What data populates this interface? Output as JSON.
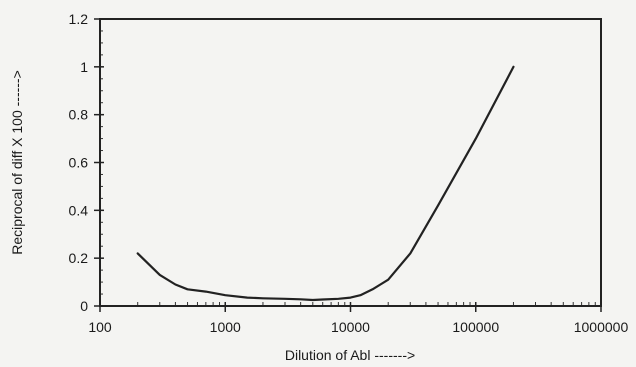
{
  "chart_data": {
    "type": "line",
    "xlabel": "Dilution of Abl ------->",
    "ylabel": "Reciprocal of diff X 100 ------>",
    "xscale": "log",
    "xlim": [
      100,
      1000000
    ],
    "ylim": [
      0,
      1.2
    ],
    "x_ticks": [
      100,
      1000,
      10000,
      100000,
      1000000
    ],
    "x_tick_labels": [
      "100",
      "1000",
      "10000",
      "100000",
      "1000000"
    ],
    "y_ticks": [
      0,
      0.2,
      0.4,
      0.6,
      0.8,
      1,
      1.2
    ],
    "y_tick_labels": [
      "0",
      "0.2",
      "0.4",
      "0.6",
      "0.8",
      "1",
      "1.2"
    ],
    "grid": false,
    "series": [
      {
        "x": [
          200,
          300,
          400,
          500,
          700,
          1000,
          1500,
          2000,
          3000,
          4000,
          5000,
          6000,
          8000,
          10000,
          12000,
          15000,
          20000,
          30000,
          50000,
          100000,
          200000
        ],
        "y": [
          0.22,
          0.13,
          0.09,
          0.07,
          0.06,
          0.045,
          0.035,
          0.032,
          0.03,
          0.028,
          0.025,
          0.027,
          0.03,
          0.035,
          0.045,
          0.07,
          0.11,
          0.22,
          0.42,
          0.7,
          1.0
        ],
        "color": "#222222"
      }
    ]
  }
}
